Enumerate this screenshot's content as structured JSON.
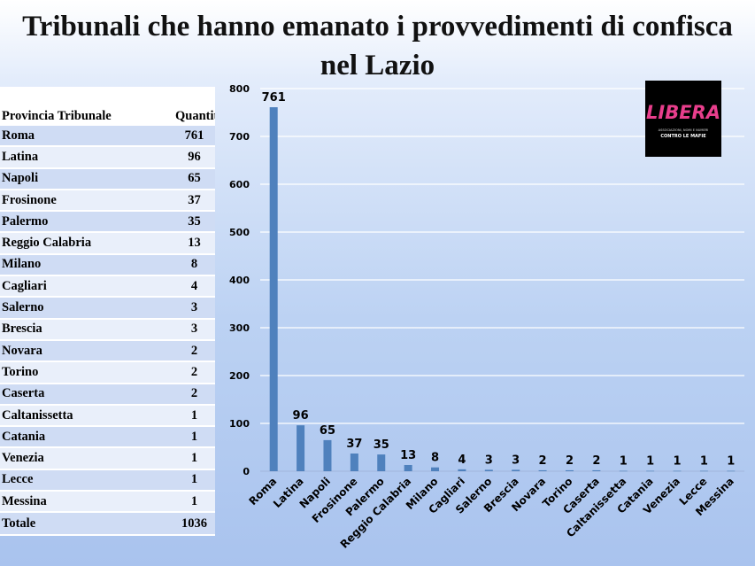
{
  "title": "Tribunali che hanno emanato i provvedimenti di confisca nel Lazio",
  "table": {
    "col_province": "Provincia Tribunale",
    "col_quantity": "Quantità",
    "rows": [
      {
        "name": "Roma",
        "qty": "761"
      },
      {
        "name": "Latina",
        "qty": "96"
      },
      {
        "name": "Napoli",
        "qty": "65"
      },
      {
        "name": "Frosinone",
        "qty": "37"
      },
      {
        "name": "Palermo",
        "qty": "35"
      },
      {
        "name": "Reggio Calabria",
        "qty": "13"
      },
      {
        "name": "Milano",
        "qty": "8"
      },
      {
        "name": "Cagliari",
        "qty": "4"
      },
      {
        "name": "Salerno",
        "qty": "3"
      },
      {
        "name": "Brescia",
        "qty": "3"
      },
      {
        "name": "Novara",
        "qty": "2"
      },
      {
        "name": "Torino",
        "qty": "2"
      },
      {
        "name": "Caserta",
        "qty": "2"
      },
      {
        "name": "Caltanissetta",
        "qty": "1"
      },
      {
        "name": "Catania",
        "qty": "1"
      },
      {
        "name": "Venezia",
        "qty": "1"
      },
      {
        "name": "Lecce",
        "qty": "1"
      },
      {
        "name": "Messina",
        "qty": "1"
      }
    ],
    "total_label": "Totale",
    "total_value": "1036"
  },
  "logo": {
    "wordmark": "LIBERA",
    "tagline_1": "ASSOCIAZIONI, NOMI E NUMERI",
    "tagline_2": "CONTRO LE MAFIE"
  },
  "colors": {
    "bar": "#4f81bd",
    "gridline": "#ffffff",
    "axis_text": "#000000"
  },
  "chart_data": {
    "type": "bar",
    "categories": [
      "Roma",
      "Latina",
      "Napoli",
      "Frosinone",
      "Palermo",
      "Reggio Calabria",
      "Milano",
      "Cagliari",
      "Salerno",
      "Brescia",
      "Novara",
      "Torino",
      "Caserta",
      "Caltanissetta",
      "Catania",
      "Venezia",
      "Lecce",
      "Messina"
    ],
    "values": [
      761,
      96,
      65,
      37,
      35,
      13,
      8,
      4,
      3,
      3,
      2,
      2,
      2,
      1,
      1,
      1,
      1,
      1
    ],
    "yticks": [
      0,
      100,
      200,
      300,
      400,
      500,
      600,
      700,
      800
    ],
    "ylim": [
      0,
      800
    ],
    "data_labels": true,
    "grid": true,
    "legend": "none"
  }
}
